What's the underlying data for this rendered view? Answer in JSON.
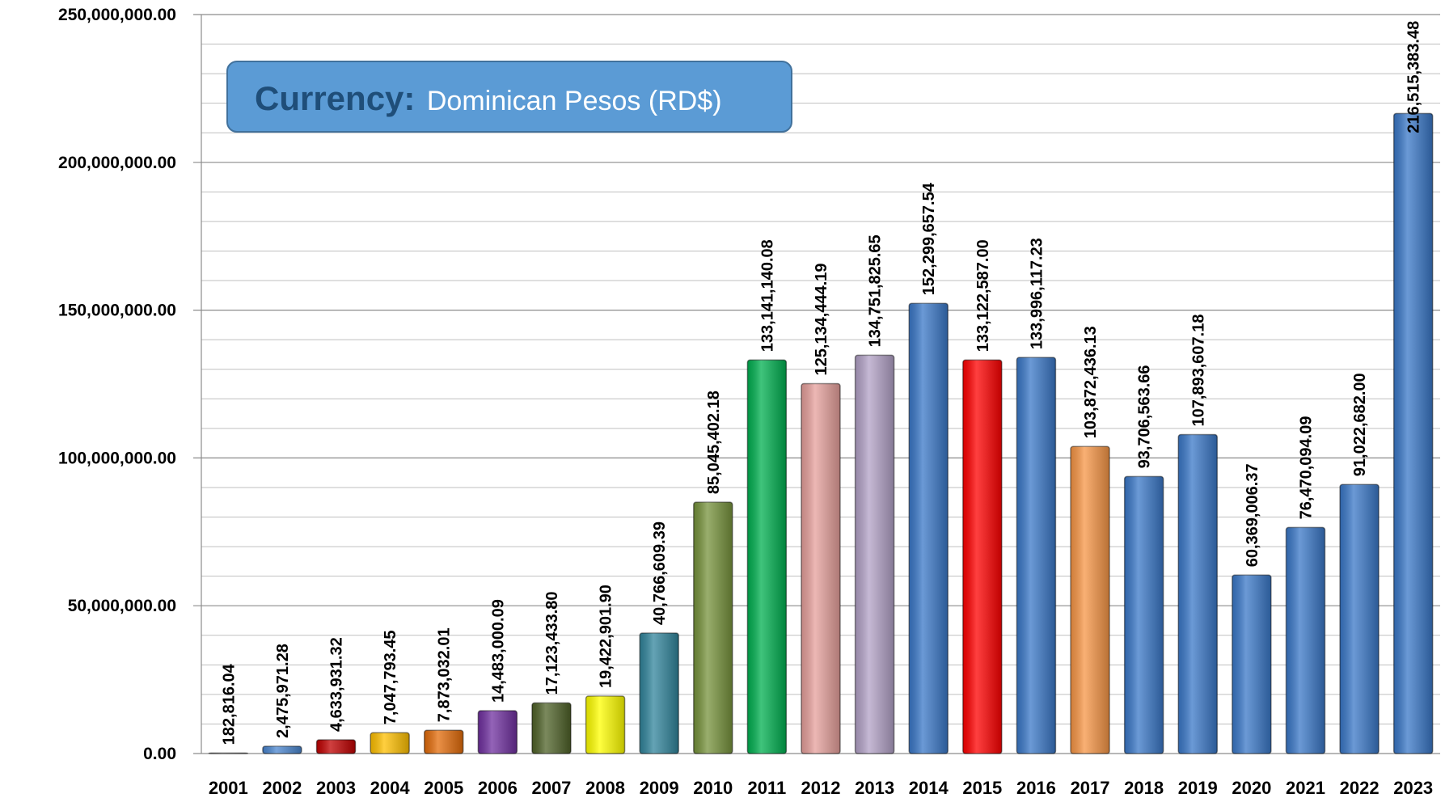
{
  "chart_data": {
    "type": "bar",
    "annotation": {
      "label": "Currency:",
      "text": "Dominican Pesos (RD$)"
    },
    "categories": [
      "2001",
      "2002",
      "2003",
      "2004",
      "2005",
      "2006",
      "2007",
      "2008",
      "2009",
      "2010",
      "2011",
      "2012",
      "2013",
      "2014",
      "2015",
      "2016",
      "2017",
      "2018",
      "2019",
      "2020",
      "2021",
      "2022",
      "2023"
    ],
    "values": [
      182816.04,
      2475971.28,
      4633931.32,
      7047793.45,
      7873032.01,
      14483000.09,
      17123433.8,
      19422901.9,
      40766609.39,
      85045402.18,
      133141140.08,
      125134444.19,
      134751825.65,
      152299657.54,
      133122587.0,
      133996117.23,
      103872436.13,
      93706563.66,
      107893607.18,
      60369006.37,
      76470094.09,
      91022682.0,
      216515383.48
    ],
    "value_labels": [
      "182,816.04",
      "2,475,971.28",
      "4,633,931.32",
      "7,047,793.45",
      "7,873,032.01",
      "14,483,000.09",
      "17,123,433.80",
      "19,422,901.90",
      "40,766,609.39",
      "85,045,402.18",
      "133,141,140.08",
      "125,134,444.19",
      "134,751,825.65",
      "152,299,657.54",
      "133,122,587.00",
      "133,996,117.23",
      "103,872,436.13",
      "93,706,563.66",
      "107,893,607.18",
      "60,369,006.37",
      "76,470,094.09",
      "91,022,682.00",
      "216,515,383.48"
    ],
    "colors": [
      "#7f7f7f",
      "#4a86d0",
      "#c00000",
      "#ffc000",
      "#e46c0a",
      "#7030a0",
      "#4f6228",
      "#ffff00",
      "#31859c",
      "#77933c",
      "#00b050",
      "#e6a09c",
      "#b3a2c7",
      "#3a78c8",
      "#ff0000",
      "#3a78c8",
      "#f79646",
      "#3a78c8",
      "#3a78c8",
      "#3a78c8",
      "#3a78c8",
      "#3a78c8",
      "#3a78c8"
    ],
    "ylim": [
      0,
      250000000
    ],
    "yticks": [
      {
        "value": 0,
        "label": "0.00"
      },
      {
        "value": 50000000,
        "label": "50,000,000.00"
      },
      {
        "value": 100000000,
        "label": "100,000,000.00"
      },
      {
        "value": 150000000,
        "label": "150,000,000.00"
      },
      {
        "value": 200000000,
        "label": "200,000,000.00"
      },
      {
        "value": 250000000,
        "label": "250,000,000.00"
      }
    ],
    "minor_yticks": [
      10000000,
      20000000,
      30000000,
      40000000,
      60000000,
      70000000,
      80000000,
      90000000,
      110000000,
      120000000,
      130000000,
      140000000,
      160000000,
      170000000,
      180000000,
      190000000,
      210000000,
      220000000,
      230000000,
      240000000
    ],
    "grid": true
  }
}
